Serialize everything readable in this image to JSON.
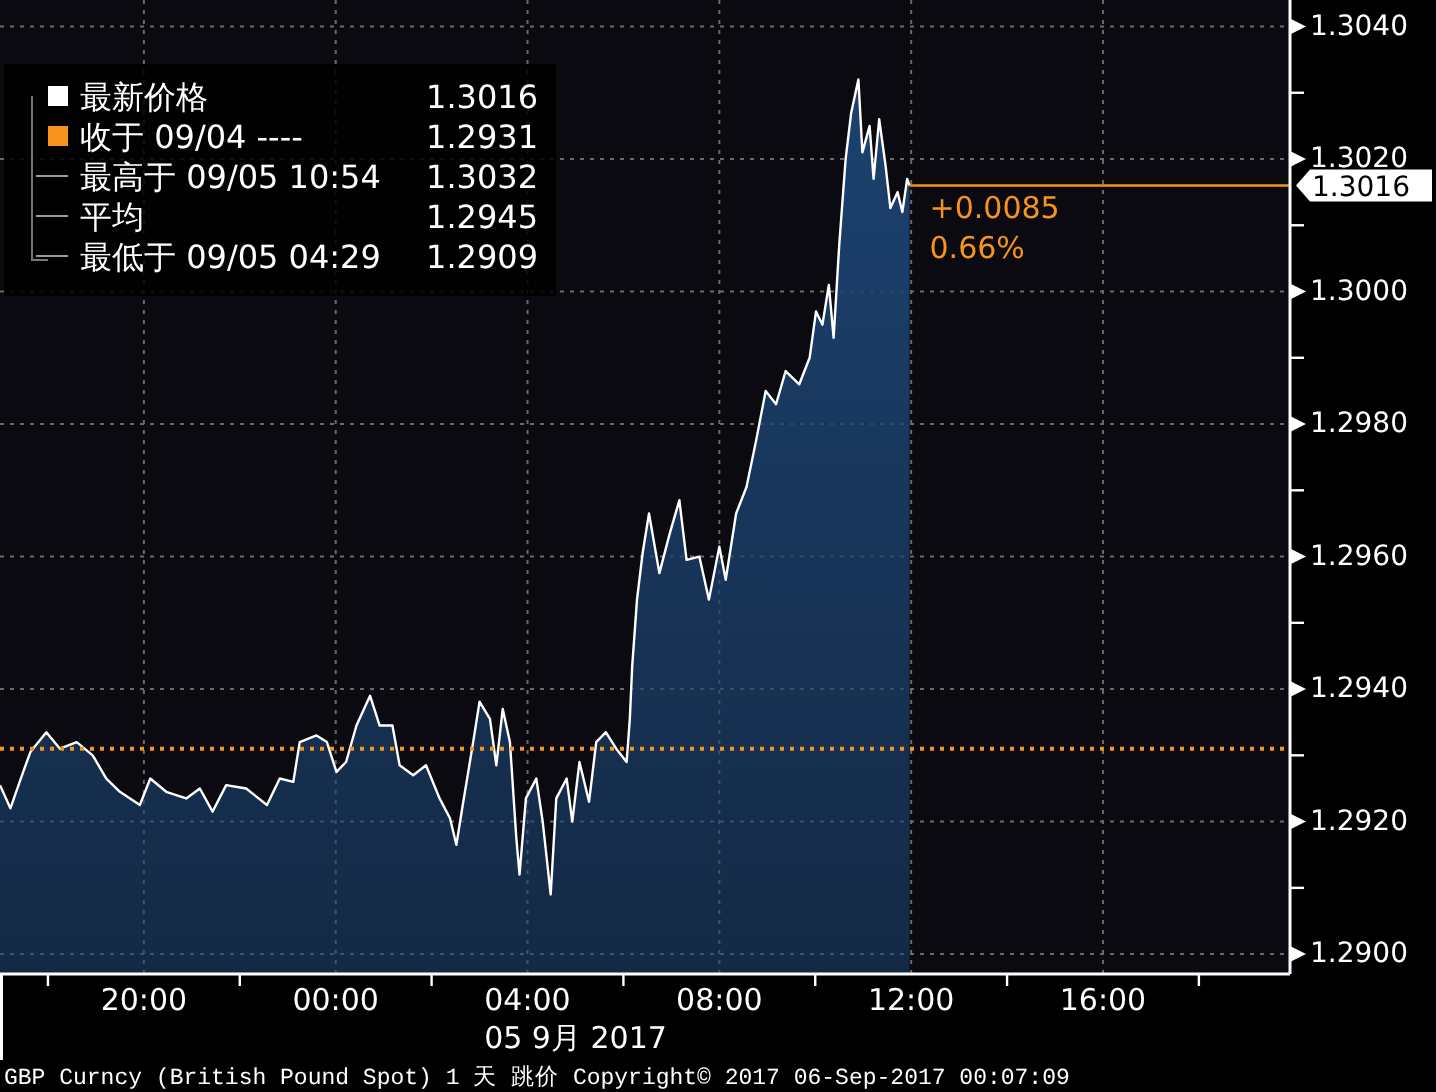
{
  "chart_data": {
    "type": "area",
    "xlabel": "05 9月 2017",
    "xlim": [
      "2017-09-04T17:00",
      "2017-09-05T19:54"
    ],
    "xticks": [
      {
        "value": "2017-09-04T18:00",
        "label": null
      },
      {
        "value": "2017-09-04T20:00",
        "label": "20:00"
      },
      {
        "value": "2017-09-04T22:00",
        "label": null
      },
      {
        "value": "2017-09-05T00:00",
        "label": "00:00"
      },
      {
        "value": "2017-09-05T02:00",
        "label": null
      },
      {
        "value": "2017-09-05T04:00",
        "label": "04:00"
      },
      {
        "value": "2017-09-05T06:00",
        "label": null
      },
      {
        "value": "2017-09-05T08:00",
        "label": "08:00"
      },
      {
        "value": "2017-09-05T10:00",
        "label": null
      },
      {
        "value": "2017-09-05T12:00",
        "label": "12:00"
      },
      {
        "value": "2017-09-05T14:00",
        "label": null
      },
      {
        "value": "2017-09-05T16:00",
        "label": "16:00"
      },
      {
        "value": "2017-09-05T18:00",
        "label": null
      }
    ],
    "ylim": [
      1.2897,
      1.3044
    ],
    "yticks": [
      {
        "value": 1.29,
        "label": "1.2900"
      },
      {
        "value": 1.291,
        "label": null
      },
      {
        "value": 1.292,
        "label": "1.2920"
      },
      {
        "value": 1.293,
        "label": null
      },
      {
        "value": 1.294,
        "label": "1.2940"
      },
      {
        "value": 1.295,
        "label": null
      },
      {
        "value": 1.296,
        "label": "1.2960"
      },
      {
        "value": 1.297,
        "label": null
      },
      {
        "value": 1.298,
        "label": "1.2980"
      },
      {
        "value": 1.299,
        "label": null
      },
      {
        "value": 1.3,
        "label": "1.3000"
      },
      {
        "value": 1.301,
        "label": null
      },
      {
        "value": 1.302,
        "label": "1.3020"
      },
      {
        "value": 1.303,
        "label": null
      },
      {
        "value": 1.304,
        "label": "1.3040"
      }
    ],
    "x": [
      "2017-09-04T17:00",
      "2017-09-04T17:13",
      "2017-09-04T17:29",
      "2017-09-04T17:38",
      "2017-09-04T17:58",
      "2017-09-04T18:15",
      "2017-09-04T18:36",
      "2017-09-04T18:56",
      "2017-09-04T19:13",
      "2017-09-04T19:30",
      "2017-09-04T19:55",
      "2017-09-04T20:08",
      "2017-09-04T20:28",
      "2017-09-04T20:53",
      "2017-09-04T21:10",
      "2017-09-04T21:26",
      "2017-09-04T21:43",
      "2017-09-04T22:08",
      "2017-09-04T22:34",
      "2017-09-04T22:50",
      "2017-09-04T23:07",
      "2017-09-04T23:15",
      "2017-09-04T23:36",
      "2017-09-04T23:49",
      "2017-09-05T00:01",
      "2017-09-05T00:13",
      "2017-09-05T00:26",
      "2017-09-05T00:43",
      "2017-09-05T00:55",
      "2017-09-05T01:11",
      "2017-09-05T01:20",
      "2017-09-05T01:37",
      "2017-09-05T01:53",
      "2017-09-05T02:10",
      "2017-09-05T02:23",
      "2017-09-05T02:31",
      "2017-09-05T02:39",
      "2017-09-05T02:52",
      "2017-09-05T03:00",
      "2017-09-05T03:13",
      "2017-09-05T03:21",
      "2017-09-05T03:29",
      "2017-09-05T03:38",
      "2017-09-05T03:46",
      "2017-09-05T03:50",
      "2017-09-05T03:58",
      "2017-09-05T04:11",
      "2017-09-05T04:19",
      "2017-09-05T04:29",
      "2017-09-05T04:36",
      "2017-09-05T04:49",
      "2017-09-05T04:56",
      "2017-09-05T05:05",
      "2017-09-05T05:17",
      "2017-09-05T05:26",
      "2017-09-05T05:38",
      "2017-09-05T05:51",
      "2017-09-05T06:04",
      "2017-09-05T06:08",
      "2017-09-05T06:11",
      "2017-09-05T06:17",
      "2017-09-05T06:24",
      "2017-09-05T06:32",
      "2017-09-05T06:45",
      "2017-09-05T06:58",
      "2017-09-05T07:10",
      "2017-09-05T07:19",
      "2017-09-05T07:35",
      "2017-09-05T07:47",
      "2017-09-05T08:00",
      "2017-09-05T08:08",
      "2017-09-05T08:21",
      "2017-09-05T08:34",
      "2017-09-05T08:46",
      "2017-09-05T08:58",
      "2017-09-05T09:11",
      "2017-09-05T09:23",
      "2017-09-05T09:40",
      "2017-09-05T09:53",
      "2017-09-05T10:01",
      "2017-09-05T10:09",
      "2017-09-05T10:17",
      "2017-09-05T10:23",
      "2017-09-05T10:30",
      "2017-09-05T10:38",
      "2017-09-05T10:45",
      "2017-09-05T10:54",
      "2017-09-05T10:59",
      "2017-09-05T11:08",
      "2017-09-05T11:13",
      "2017-09-05T11:20",
      "2017-09-05T11:28",
      "2017-09-05T11:34",
      "2017-09-05T11:43",
      "2017-09-05T11:49",
      "2017-09-05T11:55",
      "2017-09-05T11:58"
    ],
    "series": [
      {
        "name": "最新价格",
        "color": "#1c4270",
        "values": [
          1.29255,
          1.2922,
          1.29275,
          1.29305,
          1.29335,
          1.2931,
          1.2932,
          1.293,
          1.29265,
          1.29245,
          1.29225,
          1.29265,
          1.29245,
          1.29235,
          1.2925,
          1.29215,
          1.29255,
          1.2925,
          1.29225,
          1.29265,
          1.2926,
          1.2932,
          1.2933,
          1.2932,
          1.29275,
          1.2929,
          1.29345,
          1.2939,
          1.29345,
          1.29345,
          1.29285,
          1.2927,
          1.29285,
          1.29235,
          1.29205,
          1.29165,
          1.29225,
          1.2932,
          1.29381,
          1.29355,
          1.29285,
          1.2937,
          1.2932,
          1.29175,
          1.2912,
          1.29235,
          1.29265,
          1.292,
          1.2909,
          1.29235,
          1.29265,
          1.292,
          1.2929,
          1.2923,
          1.2932,
          1.29335,
          1.2931,
          1.2929,
          1.29355,
          1.29435,
          1.29535,
          1.29605,
          1.29665,
          1.29575,
          1.29635,
          1.29685,
          1.29595,
          1.296,
          1.29535,
          1.29615,
          1.29565,
          1.29665,
          1.29705,
          1.29775,
          1.2985,
          1.2983,
          1.2988,
          1.2986,
          1.299,
          1.2997,
          1.2995,
          1.3001,
          1.2993,
          1.3007,
          1.302,
          1.3027,
          1.3032,
          1.3021,
          1.3025,
          1.3017,
          1.3026,
          1.3019,
          1.30126,
          1.3015,
          1.3012,
          1.3017,
          1.3016
        ]
      }
    ],
    "ref_lines": [
      {
        "axis": "y",
        "value": 1.2931,
        "label": "收于 09/04 ----",
        "color": "#f7941d",
        "line_style": "dotted"
      },
      {
        "axis": "y",
        "value": 1.3016,
        "label": "1.3016",
        "color": "#f7941d",
        "line_style": "solid"
      }
    ],
    "annotations": [
      {
        "text": "+0.0085",
        "x": "2017-09-05T11:58",
        "y": 1.3016
      },
      "0.66%",
      "1.3016",
      "1.2931",
      "最高于 09/05 10:54 1.3032",
      "平均 1.2945",
      "最低于 09/05 04:29 1.2909",
      "GBP Curncy (British Pound Spot) 1 天  跳价 Copyright© 2017 06-Sep-2017 00:07:09"
    ],
    "grid": true,
    "legend": "top left"
  }
}
